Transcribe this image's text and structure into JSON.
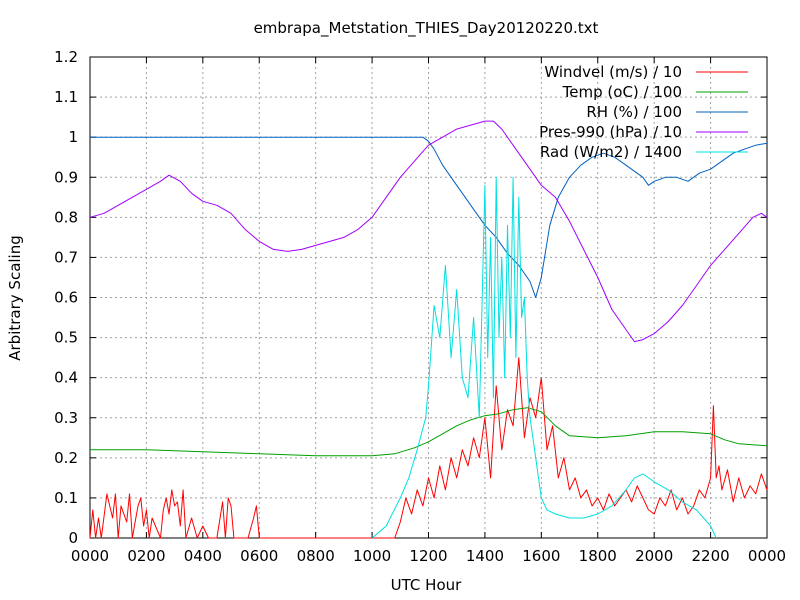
{
  "chart_data": {
    "type": "line",
    "title": "embrapa_Metstation_THIES_Day20120220.txt",
    "xlabel": "UTC Hour",
    "ylabel": "Arbitrary Scaling",
    "xlim": [
      0,
      24
    ],
    "ylim": [
      0,
      1.2
    ],
    "x_tick_values": [
      0,
      2,
      4,
      6,
      8,
      10,
      12,
      14,
      16,
      18,
      20,
      22,
      24
    ],
    "x_tick_labels": [
      "0000",
      "0200",
      "0400",
      "0600",
      "0800",
      "1000",
      "1200",
      "1400",
      "1600",
      "1800",
      "2000",
      "2200",
      "0000"
    ],
    "y_tick_values": [
      0,
      0.1,
      0.2,
      0.3,
      0.4,
      0.5,
      0.6,
      0.7,
      0.8,
      0.9,
      1.0,
      1.1,
      1.2
    ],
    "y_tick_labels": [
      "0",
      "0.1",
      "0.2",
      "0.3",
      "0.4",
      "0.5",
      "0.6",
      "0.7",
      "0.8",
      "0.9",
      "1",
      "1.1",
      "1.2"
    ],
    "grid": true,
    "legend_position": "top-right",
    "series": [
      {
        "name": "Windvel (m/s) / 10",
        "color": "#ff0000",
        "x": [
          0,
          0.1,
          0.2,
          0.3,
          0.4,
          0.6,
          0.8,
          0.9,
          1.0,
          1.1,
          1.3,
          1.4,
          1.5,
          1.7,
          1.8,
          1.9,
          2.0,
          2.1,
          2.2,
          2.5,
          2.6,
          2.7,
          2.8,
          2.9,
          3.0,
          3.1,
          3.2,
          3.3,
          3.4,
          3.6,
          3.8,
          4.0,
          4.2,
          4.5,
          4.7,
          4.8,
          4.9,
          5.0,
          5.1,
          5.3,
          5.6,
          5.8,
          5.9,
          6.0,
          6.2,
          7.0,
          8.0,
          9.0,
          10.0,
          10.8,
          11.0,
          11.2,
          11.4,
          11.6,
          11.8,
          12.0,
          12.2,
          12.4,
          12.6,
          12.8,
          13.0,
          13.2,
          13.4,
          13.6,
          13.8,
          14.0,
          14.2,
          14.4,
          14.6,
          14.8,
          15.0,
          15.2,
          15.4,
          15.6,
          15.8,
          16.0,
          16.2,
          16.4,
          16.6,
          16.8,
          17.0,
          17.2,
          17.4,
          17.6,
          17.8,
          18.0,
          18.2,
          18.4,
          18.6,
          18.8,
          19.0,
          19.2,
          19.4,
          19.6,
          19.8,
          20.0,
          20.2,
          20.4,
          20.6,
          20.8,
          21.0,
          21.2,
          21.4,
          21.6,
          21.8,
          22.0,
          22.1,
          22.2,
          22.3,
          22.4,
          22.6,
          22.8,
          23.0,
          23.2,
          23.4,
          23.6,
          23.8,
          24.0
        ],
        "y": [
          0,
          0.07,
          0,
          0.05,
          0,
          0.11,
          0.05,
          0.11,
          0,
          0.08,
          0.04,
          0.11,
          0,
          0.08,
          0.1,
          0.03,
          0.07,
          0,
          0.05,
          0,
          0.07,
          0.1,
          0.06,
          0.12,
          0.08,
          0.09,
          0.03,
          0.12,
          0,
          0.05,
          0,
          0.03,
          0,
          0,
          0.09,
          0,
          0.1,
          0.08,
          0,
          0,
          0,
          0.05,
          0.08,
          0,
          0,
          0,
          0,
          0,
          0,
          0,
          0.04,
          0.1,
          0.06,
          0.12,
          0.08,
          0.15,
          0.1,
          0.18,
          0.12,
          0.2,
          0.15,
          0.22,
          0.18,
          0.25,
          0.2,
          0.3,
          0.15,
          0.38,
          0.22,
          0.32,
          0.28,
          0.45,
          0.25,
          0.35,
          0.3,
          0.4,
          0.22,
          0.28,
          0.15,
          0.2,
          0.12,
          0.15,
          0.1,
          0.12,
          0.08,
          0.1,
          0.07,
          0.11,
          0.08,
          0.1,
          0.12,
          0.09,
          0.13,
          0.1,
          0.07,
          0.06,
          0.1,
          0.08,
          0.12,
          0.07,
          0.1,
          0.06,
          0.08,
          0.12,
          0.1,
          0.15,
          0.33,
          0.15,
          0.18,
          0.12,
          0.17,
          0.09,
          0.15,
          0.1,
          0.13,
          0.11,
          0.16,
          0.12
        ]
      },
      {
        "name": "Temp (oC) / 100",
        "color": "#00a000",
        "x": [
          0,
          2,
          4,
          6,
          8,
          10,
          10.8,
          11.5,
          12.0,
          12.5,
          13.0,
          13.5,
          14.0,
          14.5,
          15.0,
          15.5,
          16.0,
          16.5,
          17.0,
          18.0,
          19.0,
          20.0,
          21.0,
          22.0,
          22.5,
          23.0,
          24.0
        ],
        "y": [
          0.22,
          0.22,
          0.215,
          0.21,
          0.205,
          0.205,
          0.21,
          0.225,
          0.24,
          0.26,
          0.28,
          0.295,
          0.305,
          0.31,
          0.32,
          0.325,
          0.315,
          0.28,
          0.255,
          0.25,
          0.255,
          0.265,
          0.265,
          0.26,
          0.245,
          0.235,
          0.23
        ]
      },
      {
        "name": "RH (%) / 100",
        "color": "#0060c0",
        "x": [
          0,
          4,
          8,
          11.8,
          12.0,
          12.2,
          12.5,
          12.8,
          13.0,
          13.3,
          13.6,
          14.0,
          14.4,
          14.8,
          15.2,
          15.6,
          15.8,
          16.0,
          16.3,
          16.6,
          17.0,
          17.4,
          17.8,
          18.2,
          18.6,
          19.0,
          19.4,
          19.6,
          19.8,
          20.0,
          20.4,
          20.8,
          21.2,
          21.6,
          22.0,
          22.4,
          22.8,
          23.2,
          23.6,
          24.0
        ],
        "y": [
          1.0,
          1.0,
          1.0,
          1.0,
          0.99,
          0.97,
          0.93,
          0.9,
          0.88,
          0.85,
          0.82,
          0.78,
          0.75,
          0.71,
          0.68,
          0.64,
          0.6,
          0.65,
          0.78,
          0.85,
          0.9,
          0.93,
          0.95,
          0.96,
          0.95,
          0.93,
          0.91,
          0.9,
          0.88,
          0.89,
          0.9,
          0.9,
          0.89,
          0.91,
          0.92,
          0.94,
          0.96,
          0.97,
          0.98,
          0.985
        ]
      },
      {
        "name": "Pres-990 (hPa) / 10",
        "color": "#a000ff",
        "x": [
          0,
          0.5,
          1.0,
          1.5,
          2.0,
          2.5,
          2.8,
          3.2,
          3.6,
          4.0,
          4.5,
          5.0,
          5.5,
          6.0,
          6.5,
          7.0,
          7.5,
          8.0,
          8.5,
          9.0,
          9.5,
          10.0,
          10.5,
          11.0,
          11.5,
          12.0,
          12.5,
          13.0,
          13.5,
          14.0,
          14.3,
          14.6,
          15.0,
          15.5,
          16.0,
          16.5,
          17.0,
          17.5,
          18.0,
          18.5,
          19.0,
          19.3,
          19.6,
          20.0,
          20.5,
          21.0,
          21.5,
          22.0,
          22.5,
          23.0,
          23.5,
          23.8,
          24.0
        ],
        "y": [
          0.8,
          0.81,
          0.83,
          0.85,
          0.87,
          0.89,
          0.905,
          0.89,
          0.86,
          0.84,
          0.83,
          0.81,
          0.77,
          0.74,
          0.72,
          0.715,
          0.72,
          0.73,
          0.74,
          0.75,
          0.77,
          0.8,
          0.85,
          0.9,
          0.94,
          0.98,
          1.0,
          1.02,
          1.03,
          1.04,
          1.04,
          1.02,
          0.98,
          0.93,
          0.88,
          0.85,
          0.79,
          0.72,
          0.65,
          0.57,
          0.52,
          0.49,
          0.495,
          0.51,
          0.54,
          0.58,
          0.63,
          0.68,
          0.72,
          0.76,
          0.8,
          0.81,
          0.8
        ]
      },
      {
        "name": "Rad (W/m2) / 1400",
        "color": "#00e0e0",
        "x": [
          10.0,
          10.5,
          11.0,
          11.3,
          11.6,
          11.9,
          12.0,
          12.2,
          12.4,
          12.6,
          12.8,
          13.0,
          13.2,
          13.4,
          13.6,
          13.8,
          14.0,
          14.1,
          14.2,
          14.3,
          14.4,
          14.5,
          14.6,
          14.7,
          14.8,
          14.9,
          15.0,
          15.1,
          15.2,
          15.3,
          15.4,
          15.5,
          15.6,
          15.7,
          15.8,
          15.9,
          16.0,
          16.2,
          16.5,
          17.0,
          17.5,
          18.0,
          18.5,
          19.0,
          19.3,
          19.6,
          20.0,
          20.5,
          21.0,
          21.5,
          22.0,
          22.2
        ],
        "y": [
          0,
          0.03,
          0.1,
          0.15,
          0.22,
          0.3,
          0.38,
          0.58,
          0.5,
          0.68,
          0.45,
          0.62,
          0.4,
          0.35,
          0.55,
          0.3,
          0.88,
          0.45,
          0.75,
          0.35,
          0.9,
          0.5,
          0.7,
          0.4,
          0.78,
          0.5,
          0.9,
          0.45,
          0.85,
          0.55,
          0.6,
          0.4,
          0.3,
          0.25,
          0.2,
          0.15,
          0.1,
          0.07,
          0.06,
          0.05,
          0.05,
          0.06,
          0.08,
          0.12,
          0.15,
          0.16,
          0.14,
          0.12,
          0.09,
          0.07,
          0.03,
          0
        ]
      }
    ]
  }
}
